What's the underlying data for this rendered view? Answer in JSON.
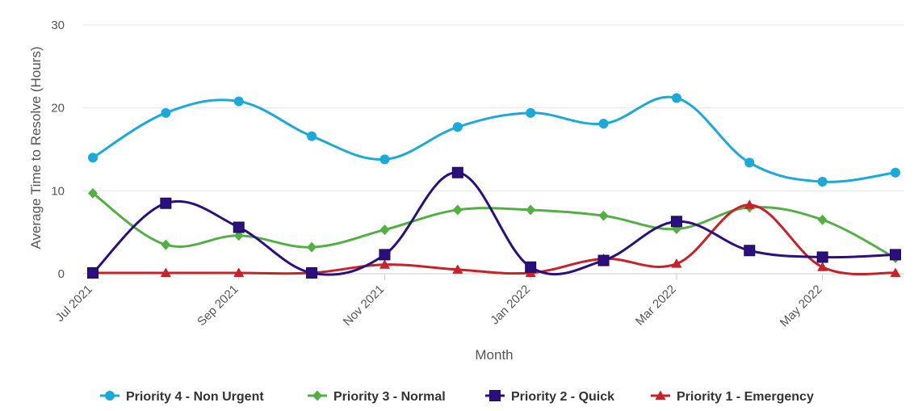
{
  "chart_data": {
    "type": "line",
    "xlabel": "Month",
    "ylabel": "Average Time to Resolve (Hours)",
    "ylim": [
      0,
      30
    ],
    "yticks": [
      0,
      10,
      20,
      30
    ],
    "x": [
      "Jul 2021",
      "Aug 2021",
      "Sep 2021",
      "Oct 2021",
      "Nov 2021",
      "Dec 2021",
      "Jan 2022",
      "Feb 2022",
      "Mar 2022",
      "Apr 2022",
      "May 2022",
      "Jun 2022"
    ],
    "xtick_labels": [
      "Jul 2021",
      "Sep 2021",
      "Nov 2021",
      "Jan 2022",
      "Mar 2022",
      "May 2022"
    ],
    "grid": true,
    "legend_position": "bottom",
    "series": [
      {
        "name": "Priority 4 - Non Urgent",
        "color": "#1aaad9",
        "marker": "circle",
        "values": [
          14.0,
          19.4,
          20.8,
          16.6,
          13.8,
          17.7,
          19.4,
          18.1,
          21.2,
          13.4,
          11.1,
          12.2
        ]
      },
      {
        "name": "Priority 3 - Normal",
        "color": "#52b043",
        "marker": "diamond",
        "values": [
          9.7,
          3.5,
          4.6,
          3.2,
          5.3,
          7.7,
          7.7,
          7.0,
          5.4,
          8.0,
          6.5,
          1.9
        ]
      },
      {
        "name": "Priority 2 - Quick",
        "color": "#2b0f7e",
        "marker": "square",
        "values": [
          0.1,
          8.5,
          5.6,
          0.1,
          2.3,
          12.2,
          0.8,
          1.6,
          6.3,
          2.8,
          2.0,
          2.3
        ]
      },
      {
        "name": "Priority 1 - Emergency",
        "color": "#c82127",
        "marker": "triangle",
        "values": [
          0.1,
          0.1,
          0.1,
          0.1,
          1.1,
          0.5,
          0.1,
          1.8,
          1.2,
          8.3,
          0.8,
          0.1
        ]
      }
    ]
  }
}
